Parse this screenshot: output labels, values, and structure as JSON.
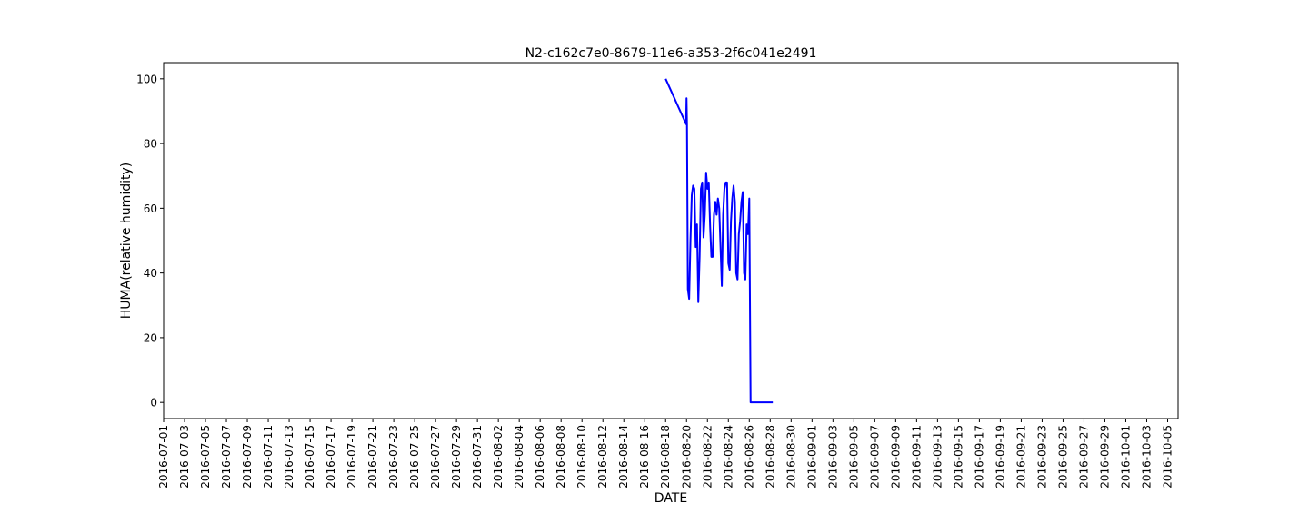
{
  "chart_data": {
    "type": "line",
    "title": "N2-c162c7e0-8679-11e6-a353-2f6c041e2491",
    "xlabel": "DATE",
    "ylabel": "HUMA(relative humidity)",
    "xlim": [
      "2016-07-01",
      "2016-10-06"
    ],
    "ylim": [
      -5,
      105
    ],
    "yticks": [
      0,
      20,
      40,
      60,
      80,
      100
    ],
    "xticks": [
      "2016-07-01",
      "2016-07-03",
      "2016-07-05",
      "2016-07-07",
      "2016-07-09",
      "2016-07-11",
      "2016-07-13",
      "2016-07-15",
      "2016-07-17",
      "2016-07-19",
      "2016-07-21",
      "2016-07-23",
      "2016-07-25",
      "2016-07-27",
      "2016-07-29",
      "2016-07-31",
      "2016-08-02",
      "2016-08-04",
      "2016-08-06",
      "2016-08-08",
      "2016-08-10",
      "2016-08-12",
      "2016-08-14",
      "2016-08-16",
      "2016-08-18",
      "2016-08-20",
      "2016-08-22",
      "2016-08-24",
      "2016-08-26",
      "2016-08-28",
      "2016-08-30",
      "2016-09-01",
      "2016-09-03",
      "2016-09-05",
      "2016-09-07",
      "2016-09-09",
      "2016-09-11",
      "2016-09-13",
      "2016-09-15",
      "2016-09-17",
      "2016-09-19",
      "2016-09-21",
      "2016-09-23",
      "2016-09-25",
      "2016-09-27",
      "2016-09-29",
      "2016-10-01",
      "2016-10-03",
      "2016-10-05"
    ],
    "grid": false,
    "series_color": "#0000ff",
    "series": [
      {
        "x": [
          "2016-08-18 00:00",
          "2016-08-19 23:00",
          "2016-08-20 00:00",
          "2016-08-20 01:00",
          "2016-08-20 03:00",
          "2016-08-20 06:00",
          "2016-08-20 09:00",
          "2016-08-20 12:00",
          "2016-08-20 15:00",
          "2016-08-20 18:00",
          "2016-08-20 21:00",
          "2016-08-21 00:00",
          "2016-08-21 03:00",
          "2016-08-21 06:00",
          "2016-08-21 09:00",
          "2016-08-21 12:00",
          "2016-08-21 15:00",
          "2016-08-21 18:00",
          "2016-08-21 21:00",
          "2016-08-22 00:00",
          "2016-08-22 03:00",
          "2016-08-22 06:00",
          "2016-08-22 09:00",
          "2016-08-22 12:00",
          "2016-08-22 15:00",
          "2016-08-22 18:00",
          "2016-08-22 21:00",
          "2016-08-23 00:00",
          "2016-08-23 03:00",
          "2016-08-23 06:00",
          "2016-08-23 09:00",
          "2016-08-23 12:00",
          "2016-08-23 15:00",
          "2016-08-23 18:00",
          "2016-08-23 21:00",
          "2016-08-24 00:00",
          "2016-08-24 03:00",
          "2016-08-24 06:00",
          "2016-08-24 09:00",
          "2016-08-24 12:00",
          "2016-08-24 15:00",
          "2016-08-24 18:00",
          "2016-08-24 21:00",
          "2016-08-25 00:00",
          "2016-08-25 03:00",
          "2016-08-25 06:00",
          "2016-08-25 09:00",
          "2016-08-25 12:00",
          "2016-08-25 15:00",
          "2016-08-25 18:00",
          "2016-08-25 21:00",
          "2016-08-26 00:00",
          "2016-08-26 03:00",
          "2016-08-26 06:00",
          "2016-08-26 09:00",
          "2016-08-26 12:00",
          "2016-08-26 15:00",
          "2016-08-26 18:00",
          "2016-08-26 21:00",
          "2016-08-27 00:00",
          "2016-08-27 03:00",
          "2016-08-27 06:00",
          "2016-08-27 09:00",
          "2016-08-27 12:00",
          "2016-08-27 15:00",
          "2016-08-27 18:00",
          "2016-08-27 21:00",
          "2016-08-28 00:00",
          "2016-08-28 03:00",
          "2016-08-28 06:00"
        ],
        "y": [
          100,
          86,
          94,
          86,
          35,
          32,
          50,
          64,
          67,
          66,
          48,
          55,
          31,
          45,
          66,
          68,
          51,
          58,
          71,
          66,
          68,
          55,
          45,
          45,
          58,
          62,
          58,
          63,
          60,
          48,
          36,
          58,
          66,
          68,
          68,
          43,
          41,
          56,
          63,
          67,
          62,
          40,
          38,
          52,
          56,
          62,
          65,
          40,
          38,
          55,
          52,
          63,
          0,
          0,
          0,
          0,
          0,
          0,
          0,
          0,
          0,
          0,
          0,
          0,
          0,
          0,
          0,
          0,
          0,
          0
        ]
      }
    ]
  }
}
